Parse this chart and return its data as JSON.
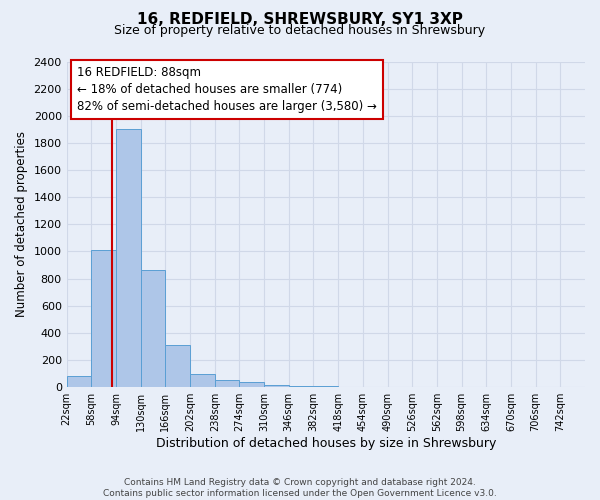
{
  "title": "16, REDFIELD, SHREWSBURY, SY1 3XP",
  "subtitle": "Size of property relative to detached houses in Shrewsbury",
  "xlabel": "Distribution of detached houses by size in Shrewsbury",
  "ylabel": "Number of detached properties",
  "footer_line1": "Contains HM Land Registry data © Crown copyright and database right 2024.",
  "footer_line2": "Contains public sector information licensed under the Open Government Licence v3.0.",
  "bin_labels": [
    "22sqm",
    "58sqm",
    "94sqm",
    "130sqm",
    "166sqm",
    "202sqm",
    "238sqm",
    "274sqm",
    "310sqm",
    "346sqm",
    "382sqm",
    "418sqm",
    "454sqm",
    "490sqm",
    "526sqm",
    "562sqm",
    "598sqm",
    "634sqm",
    "670sqm",
    "706sqm",
    "742sqm"
  ],
  "bin_edges": [
    22,
    58,
    94,
    130,
    166,
    202,
    238,
    274,
    310,
    346,
    382,
    418,
    454,
    490,
    526,
    562,
    598,
    634,
    670,
    706,
    742,
    778
  ],
  "bar_heights": [
    80,
    1010,
    1900,
    860,
    310,
    100,
    55,
    35,
    18,
    12,
    8,
    5,
    4,
    3,
    2,
    2,
    1,
    1,
    1,
    1,
    1
  ],
  "bar_color": "#aec6e8",
  "bar_edgecolor": "#5a9fd4",
  "property_size": 88,
  "red_line_color": "#cc0000",
  "annotation_line1": "16 REDFIELD: 88sqm",
  "annotation_line2": "← 18% of detached houses are smaller (774)",
  "annotation_line3": "82% of semi-detached houses are larger (3,580) →",
  "annotation_box_edgecolor": "#cc0000",
  "ylim": [
    0,
    2400
  ],
  "yticks": [
    0,
    200,
    400,
    600,
    800,
    1000,
    1200,
    1400,
    1600,
    1800,
    2000,
    2200,
    2400
  ],
  "bg_color": "#e8eef8",
  "grid_color": "#d0d8e8",
  "title_fontsize": 11,
  "subtitle_fontsize": 9,
  "ylabel_fontsize": 8.5,
  "xlabel_fontsize": 9,
  "tick_fontsize": 8,
  "annotation_fontsize": 8.5
}
